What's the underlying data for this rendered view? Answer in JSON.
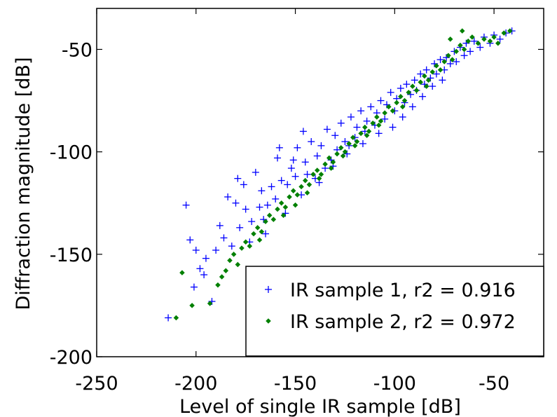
{
  "chart_data": {
    "type": "scatter",
    "title": "",
    "xlabel": "Level of single IR sample   [dB]",
    "ylabel": "Diffraction magnitude   [dB]",
    "xlim": [
      -250,
      -25
    ],
    "ylim": [
      -200,
      -30
    ],
    "xticks": [
      -250,
      -200,
      -150,
      -100,
      -50
    ],
    "yticks": [
      -200,
      -150,
      -100,
      -50
    ],
    "xtick_labels": [
      "-250",
      "-200",
      "-150",
      "-100",
      "-50"
    ],
    "ytick_labels": [
      "-200",
      "-150",
      "-100",
      "-50"
    ],
    "grid": false,
    "legend_position": "bottom-right",
    "series": [
      {
        "name": "IR sample 1, r2 = 0.916",
        "marker": "plus",
        "color": "#0000ff",
        "points": [
          [
            -214,
            -181
          ],
          [
            -205,
            -126
          ],
          [
            -203,
            -143
          ],
          [
            -201,
            -166
          ],
          [
            -200,
            -148
          ],
          [
            -198,
            -157
          ],
          [
            -196,
            -160
          ],
          [
            -195,
            -152
          ],
          [
            -192,
            -173
          ],
          [
            -190,
            -148
          ],
          [
            -188,
            -136
          ],
          [
            -186,
            -142
          ],
          [
            -184,
            -122
          ],
          [
            -182,
            -146
          ],
          [
            -180,
            -125
          ],
          [
            -178,
            -137
          ],
          [
            -176,
            -116
          ],
          [
            -175,
            -128
          ],
          [
            -173,
            -144
          ],
          [
            -172,
            -134
          ],
          [
            -170,
            -110
          ],
          [
            -168,
            -127
          ],
          [
            -167,
            -119
          ],
          [
            -165,
            -140
          ],
          [
            -164,
            -126
          ],
          [
            -162,
            -117
          ],
          [
            -160,
            -123
          ],
          [
            -159,
            -103
          ],
          [
            -157,
            -114
          ],
          [
            -155,
            -130
          ],
          [
            -154,
            -116
          ],
          [
            -152,
            -108
          ],
          [
            -150,
            -112
          ],
          [
            -149,
            -98
          ],
          [
            -147,
            -121
          ],
          [
            -145,
            -105
          ],
          [
            -144,
            -111
          ],
          [
            -142,
            -95
          ],
          [
            -140,
            -113
          ],
          [
            -139,
            -102
          ],
          [
            -137,
            -97
          ],
          [
            -135,
            -108
          ],
          [
            -134,
            -89
          ],
          [
            -132,
            -104
          ],
          [
            -130,
            -92
          ],
          [
            -129,
            -99
          ],
          [
            -127,
            -86
          ],
          [
            -125,
            -95
          ],
          [
            -124,
            -101
          ],
          [
            -122,
            -83
          ],
          [
            -120,
            -93
          ],
          [
            -119,
            -88
          ],
          [
            -117,
            -80
          ],
          [
            -115,
            -90
          ],
          [
            -114,
            -85
          ],
          [
            -112,
            -78
          ],
          [
            -110,
            -87
          ],
          [
            -109,
            -81
          ],
          [
            -107,
            -75
          ],
          [
            -105,
            -84
          ],
          [
            -104,
            -77
          ],
          [
            -102,
            -71
          ],
          [
            -100,
            -80
          ],
          [
            -99,
            -74
          ],
          [
            -97,
            -69
          ],
          [
            -95,
            -76
          ],
          [
            -94,
            -67
          ],
          [
            -92,
            -72
          ],
          [
            -90,
            -65
          ],
          [
            -89,
            -70
          ],
          [
            -87,
            -62
          ],
          [
            -85,
            -67
          ],
          [
            -84,
            -60
          ],
          [
            -82,
            -64
          ],
          [
            -80,
            -57
          ],
          [
            -79,
            -62
          ],
          [
            -77,
            -55
          ],
          [
            -75,
            -60
          ],
          [
            -74,
            -54
          ],
          [
            -72,
            -57
          ],
          [
            -70,
            -51
          ],
          [
            -69,
            -56
          ],
          [
            -67,
            -49
          ],
          [
            -65,
            -53
          ],
          [
            -64,
            -47
          ],
          [
            -62,
            -51
          ],
          [
            -60,
            -46
          ],
          [
            -57,
            -49
          ],
          [
            -55,
            -44
          ],
          [
            -52,
            -47
          ],
          [
            -50,
            -43
          ],
          [
            -47,
            -45
          ],
          [
            -44,
            -42
          ],
          [
            -41,
            -41
          ],
          [
            -179,
            -113
          ],
          [
            -166,
            -133
          ],
          [
            -158,
            -98
          ],
          [
            -151,
            -104
          ],
          [
            -146,
            -90
          ],
          [
            -138,
            -115
          ],
          [
            -131,
            -107
          ],
          [
            -123,
            -97
          ],
          [
            -116,
            -96
          ],
          [
            -108,
            -91
          ],
          [
            -101,
            -88
          ],
          [
            -96,
            -83
          ],
          [
            -91,
            -78
          ],
          [
            -86,
            -73
          ],
          [
            -81,
            -68
          ],
          [
            -76,
            -65
          ]
        ]
      },
      {
        "name": "IR sample 2, r2 = 0.972",
        "marker": "diamond",
        "color": "#008000",
        "points": [
          [
            -210,
            -181
          ],
          [
            -207,
            -159
          ],
          [
            -202,
            -175
          ],
          [
            -193,
            -174
          ],
          [
            -189,
            -165
          ],
          [
            -187,
            -161
          ],
          [
            -185,
            -158
          ],
          [
            -183,
            -153
          ],
          [
            -181,
            -150
          ],
          [
            -179,
            -155
          ],
          [
            -177,
            -147
          ],
          [
            -175,
            -144
          ],
          [
            -173,
            -146
          ],
          [
            -171,
            -140
          ],
          [
            -169,
            -137
          ],
          [
            -167,
            -139
          ],
          [
            -165,
            -134
          ],
          [
            -163,
            -131
          ],
          [
            -161,
            -133
          ],
          [
            -159,
            -128
          ],
          [
            -157,
            -125
          ],
          [
            -155,
            -127
          ],
          [
            -153,
            -122
          ],
          [
            -151,
            -119
          ],
          [
            -149,
            -121
          ],
          [
            -147,
            -117
          ],
          [
            -145,
            -114
          ],
          [
            -143,
            -116
          ],
          [
            -141,
            -111
          ],
          [
            -139,
            -109
          ],
          [
            -137,
            -111
          ],
          [
            -135,
            -106
          ],
          [
            -133,
            -103
          ],
          [
            -131,
            -105
          ],
          [
            -129,
            -101
          ],
          [
            -127,
            -98
          ],
          [
            -125,
            -100
          ],
          [
            -123,
            -96
          ],
          [
            -121,
            -93
          ],
          [
            -119,
            -95
          ],
          [
            -117,
            -91
          ],
          [
            -115,
            -88
          ],
          [
            -113,
            -90
          ],
          [
            -111,
            -86
          ],
          [
            -109,
            -83
          ],
          [
            -107,
            -85
          ],
          [
            -105,
            -81
          ],
          [
            -103,
            -78
          ],
          [
            -101,
            -80
          ],
          [
            -99,
            -76
          ],
          [
            -97,
            -73
          ],
          [
            -95,
            -75
          ],
          [
            -93,
            -71
          ],
          [
            -91,
            -68
          ],
          [
            -89,
            -70
          ],
          [
            -87,
            -66
          ],
          [
            -85,
            -63
          ],
          [
            -83,
            -65
          ],
          [
            -81,
            -61
          ],
          [
            -79,
            -58
          ],
          [
            -77,
            -60
          ],
          [
            -75,
            -56
          ],
          [
            -73,
            -53
          ],
          [
            -71,
            -55
          ],
          [
            -69,
            -51
          ],
          [
            -67,
            -48
          ],
          [
            -65,
            -50
          ],
          [
            -63,
            -46
          ],
          [
            -61,
            -44
          ],
          [
            -58,
            -47
          ],
          [
            -55,
            -45
          ],
          [
            -52,
            -46
          ],
          [
            -50,
            -44
          ],
          [
            -48,
            -47
          ],
          [
            -45,
            -42
          ],
          [
            -42,
            -41
          ],
          [
            -66,
            -41
          ],
          [
            -72,
            -45
          ],
          [
            -168,
            -143
          ],
          [
            -156,
            -131
          ],
          [
            -144,
            -120
          ],
          [
            -132,
            -108
          ],
          [
            -120,
            -97
          ],
          [
            -108,
            -87
          ],
          [
            -96,
            -78
          ],
          [
            -84,
            -68
          ],
          [
            -150,
            -126
          ],
          [
            -138,
            -113
          ],
          [
            -126,
            -102
          ],
          [
            -114,
            -92
          ]
        ]
      }
    ]
  }
}
